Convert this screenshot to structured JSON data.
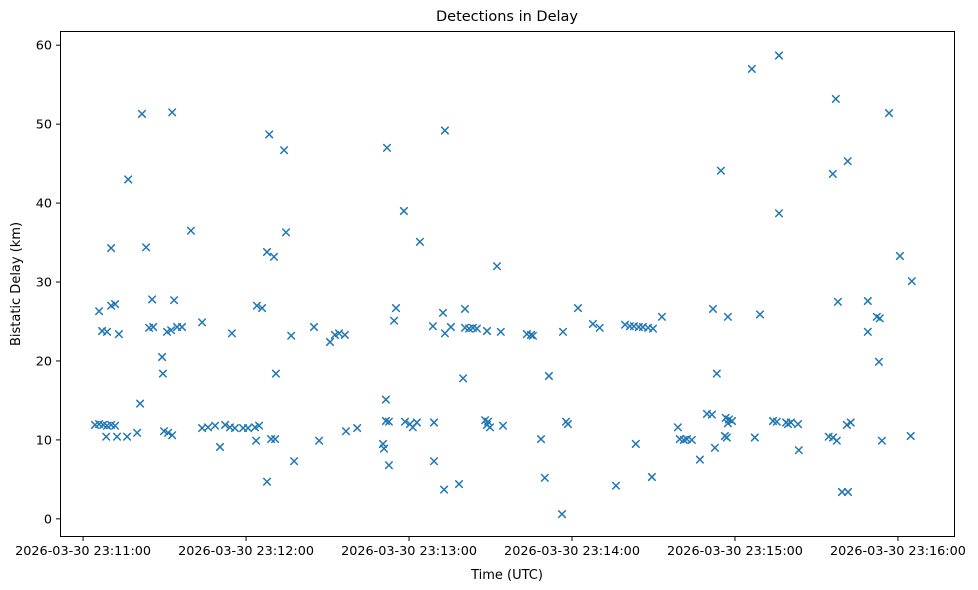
{
  "chart_data": {
    "type": "scatter",
    "title": "Detections in Delay",
    "xlabel": "Time (UTC)",
    "ylabel": "Bistatic Delay (km)",
    "marker": "x",
    "marker_color": "#1f77b4",
    "background_color": "#ffffff",
    "grid": false,
    "legend": null,
    "x_unit": "seconds after 2026-03-30 23:11:00 UTC",
    "xlim_seconds": [
      -8.5,
      321
    ],
    "ylim": [
      -2.3,
      61.8
    ],
    "x_ticks": [
      {
        "seconds": 0,
        "label": "2026-03-30 23:11:00"
      },
      {
        "seconds": 60,
        "label": "2026-03-30 23:12:00"
      },
      {
        "seconds": 120,
        "label": "2026-03-30 23:13:00"
      },
      {
        "seconds": 180,
        "label": "2026-03-30 23:14:00"
      },
      {
        "seconds": 240,
        "label": "2026-03-30 23:15:00"
      },
      {
        "seconds": 300,
        "label": "2026-03-30 23:16:00"
      }
    ],
    "y_ticks": [
      0,
      10,
      20,
      30,
      40,
      50,
      60
    ],
    "points": [
      [
        4.4,
        11.9
      ],
      [
        5.9,
        26.3
      ],
      [
        5.9,
        12.0
      ],
      [
        7.0,
        23.8
      ],
      [
        7.4,
        11.9
      ],
      [
        8.5,
        10.4
      ],
      [
        8.8,
        23.7
      ],
      [
        8.8,
        11.8
      ],
      [
        10.3,
        34.3
      ],
      [
        10.3,
        27.0
      ],
      [
        10.3,
        11.9
      ],
      [
        11.8,
        27.2
      ],
      [
        11.8,
        11.8
      ],
      [
        12.5,
        10.4
      ],
      [
        13.2,
        23.4
      ],
      [
        16.2,
        10.4
      ],
      [
        16.6,
        43.0
      ],
      [
        19.9,
        10.9
      ],
      [
        21.0,
        14.6
      ],
      [
        21.7,
        51.3
      ],
      [
        23.2,
        34.4
      ],
      [
        24.3,
        24.2
      ],
      [
        25.4,
        27.8
      ],
      [
        25.8,
        24.3
      ],
      [
        29.1,
        20.5
      ],
      [
        29.4,
        18.4
      ],
      [
        29.8,
        11.1
      ],
      [
        30.9,
        23.7
      ],
      [
        31.3,
        10.9
      ],
      [
        32.4,
        23.9
      ],
      [
        32.8,
        51.5
      ],
      [
        32.8,
        10.6
      ],
      [
        33.5,
        27.7
      ],
      [
        34.6,
        24.3
      ],
      [
        36.4,
        24.3
      ],
      [
        39.7,
        36.5
      ],
      [
        43.8,
        24.9
      ],
      [
        43.8,
        11.5
      ],
      [
        46.0,
        11.6
      ],
      [
        48.6,
        11.8
      ],
      [
        50.4,
        9.1
      ],
      [
        52.3,
        11.9
      ],
      [
        54.1,
        11.6
      ],
      [
        54.8,
        23.5
      ],
      [
        55.9,
        11.5
      ],
      [
        58.9,
        11.5
      ],
      [
        60.7,
        11.5
      ],
      [
        63.3,
        11.6
      ],
      [
        63.7,
        9.9
      ],
      [
        64.0,
        27.0
      ],
      [
        64.8,
        11.8
      ],
      [
        65.9,
        26.7
      ],
      [
        67.7,
        33.8
      ],
      [
        67.7,
        4.7
      ],
      [
        68.5,
        48.7
      ],
      [
        69.2,
        10.1
      ],
      [
        70.3,
        33.2
      ],
      [
        70.7,
        10.1
      ],
      [
        71.0,
        18.4
      ],
      [
        74.0,
        46.7
      ],
      [
        74.7,
        36.3
      ],
      [
        76.6,
        23.2
      ],
      [
        77.7,
        7.3
      ],
      [
        85.0,
        24.3
      ],
      [
        86.9,
        9.9
      ],
      [
        90.9,
        22.4
      ],
      [
        92.7,
        23.3
      ],
      [
        94.2,
        23.5
      ],
      [
        96.4,
        23.3
      ],
      [
        96.8,
        11.1
      ],
      [
        100.9,
        11.5
      ],
      [
        110.4,
        9.5
      ],
      [
        110.8,
        8.9
      ],
      [
        111.5,
        15.1
      ],
      [
        111.5,
        12.4
      ],
      [
        111.9,
        47.0
      ],
      [
        112.6,
        12.3
      ],
      [
        112.6,
        6.8
      ],
      [
        114.5,
        25.1
      ],
      [
        115.2,
        26.7
      ],
      [
        118.1,
        39.0
      ],
      [
        118.5,
        12.3
      ],
      [
        120.3,
        12.0
      ],
      [
        121.4,
        11.6
      ],
      [
        122.9,
        12.2
      ],
      [
        124.0,
        35.1
      ],
      [
        128.8,
        24.4
      ],
      [
        129.2,
        12.2
      ],
      [
        129.2,
        7.3
      ],
      [
        132.5,
        26.1
      ],
      [
        132.9,
        3.7
      ],
      [
        133.2,
        49.2
      ],
      [
        133.2,
        23.5
      ],
      [
        135.4,
        24.3
      ],
      [
        138.4,
        4.4
      ],
      [
        139.9,
        17.8
      ],
      [
        140.6,
        26.6
      ],
      [
        140.6,
        24.2
      ],
      [
        142.1,
        24.1
      ],
      [
        143.5,
        24.2
      ],
      [
        145.0,
        24.1
      ],
      [
        148.0,
        12.5
      ],
      [
        148.7,
        23.8
      ],
      [
        148.7,
        11.9
      ],
      [
        149.1,
        12.3
      ],
      [
        149.8,
        11.6
      ],
      [
        152.4,
        32.0
      ],
      [
        153.8,
        23.7
      ],
      [
        154.6,
        11.8
      ],
      [
        163.4,
        23.4
      ],
      [
        164.9,
        23.3
      ],
      [
        165.6,
        23.2
      ],
      [
        168.6,
        10.1
      ],
      [
        170.0,
        5.2
      ],
      [
        171.5,
        18.1
      ],
      [
        176.3,
        0.6
      ],
      [
        176.7,
        23.7
      ],
      [
        177.8,
        12.3
      ],
      [
        178.5,
        12.0
      ],
      [
        182.2,
        26.7
      ],
      [
        187.7,
        24.7
      ],
      [
        190.2,
        24.2
      ],
      [
        196.2,
        4.2
      ],
      [
        199.5,
        24.6
      ],
      [
        201.3,
        24.4
      ],
      [
        202.8,
        24.4
      ],
      [
        203.5,
        9.5
      ],
      [
        204.6,
        24.3
      ],
      [
        206.1,
        24.3
      ],
      [
        208.0,
        24.2
      ],
      [
        209.4,
        5.3
      ],
      [
        209.8,
        24.1
      ],
      [
        213.1,
        25.6
      ],
      [
        219.0,
        11.6
      ],
      [
        219.7,
        10.1
      ],
      [
        221.2,
        10.0
      ],
      [
        222.3,
        10.1
      ],
      [
        224.1,
        10.0
      ],
      [
        227.1,
        7.5
      ],
      [
        229.7,
        13.3
      ],
      [
        231.5,
        13.2
      ],
      [
        231.9,
        26.6
      ],
      [
        232.6,
        9.0
      ],
      [
        233.3,
        18.4
      ],
      [
        234.8,
        44.1
      ],
      [
        236.3,
        10.5
      ],
      [
        236.6,
        12.8
      ],
      [
        237.0,
        10.3
      ],
      [
        237.4,
        25.6
      ],
      [
        237.4,
        12.1
      ],
      [
        237.8,
        12.6
      ],
      [
        238.9,
        12.4
      ],
      [
        246.2,
        57.0
      ],
      [
        247.3,
        10.3
      ],
      [
        249.2,
        25.9
      ],
      [
        254.0,
        12.4
      ],
      [
        255.4,
        12.3
      ],
      [
        256.2,
        58.7
      ],
      [
        256.2,
        38.7
      ],
      [
        258.8,
        12.2
      ],
      [
        259.5,
        12.0
      ],
      [
        260.6,
        12.2
      ],
      [
        263.2,
        12.0
      ],
      [
        263.5,
        8.7
      ],
      [
        274.5,
        10.4
      ],
      [
        276.0,
        43.7
      ],
      [
        276.1,
        10.3
      ],
      [
        277.1,
        53.2
      ],
      [
        277.5,
        9.9
      ],
      [
        277.9,
        27.5
      ],
      [
        279.4,
        3.4
      ],
      [
        281.2,
        11.9
      ],
      [
        281.5,
        45.3
      ],
      [
        281.6,
        3.4
      ],
      [
        282.6,
        12.2
      ],
      [
        288.9,
        27.6
      ],
      [
        288.9,
        23.7
      ],
      [
        292.2,
        25.6
      ],
      [
        293.0,
        19.9
      ],
      [
        293.3,
        25.4
      ],
      [
        294.1,
        9.9
      ],
      [
        296.7,
        51.4
      ],
      [
        300.7,
        33.3
      ],
      [
        304.7,
        10.5
      ],
      [
        305.1,
        30.1
      ]
    ]
  }
}
